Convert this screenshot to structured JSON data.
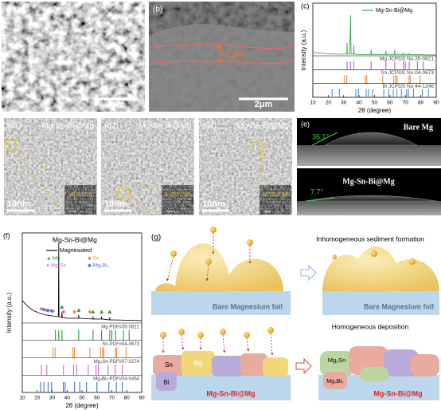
{
  "panels": {
    "a": {
      "label": "(a)",
      "scale_bar": "1μm"
    },
    "b": {
      "label": "(b)",
      "scale_bar": "2μm",
      "thickness": "1μm"
    },
    "d1": {
      "label": "(d1)",
      "title": "Mg-Sn-Bi@Mg",
      "scale_bar": "10nm",
      "inset_text": "Mg₃Bi₂ (110)",
      "inset_scale": "2nm"
    },
    "d2": {
      "label": "(d2)",
      "title": "Mg-Sn-Bi@Mg",
      "scale_bar": "10nm",
      "inset_text": "Sn(200) 2.92Å",
      "inset_scale": "2nm"
    },
    "d3": {
      "label": "(d3)",
      "title": "Mg-Sn-Bi@Mg",
      "scale_bar": "10nm",
      "inset_text": "Sn(101) 2.79Å",
      "inset_scale": "2nm"
    },
    "e": {
      "label": "(e)",
      "top": {
        "title": "Bare Mg",
        "angle": "36.1°"
      },
      "bottom": {
        "title": "Mg-Sn-Bi@Mg",
        "angle": "7.7°"
      }
    },
    "g": {
      "label": "(g)",
      "top_title": "Inhomogeneous sediment formation",
      "bottom_title": "Homogeneous deposition",
      "foil_left": "Bare Magnesium foil",
      "foil_right": "Bare Magnesium foil",
      "product_left": "Mg-Sn-Bi@Mg",
      "product_right": "Mg-Sn-Bi@Mg",
      "blocks": [
        "Sn",
        "Mg",
        "Bi",
        "Mg₂Sn",
        "Mg₃Bi₂"
      ]
    }
  },
  "chart_data": [
    {
      "type": "xrd",
      "label": "(c)",
      "xlabel": "2θ (degree)",
      "ylabel": "Intensity (a.u.)",
      "xlim": [
        10,
        90
      ],
      "xticks": [
        10,
        20,
        30,
        40,
        50,
        60,
        70,
        80,
        90
      ],
      "ylim": [
        0,
        100
      ],
      "x": [
        10,
        20,
        25,
        30,
        32,
        32.2,
        32.4,
        34,
        34.4,
        34.8,
        36.4,
        36.6,
        36.8,
        40,
        47.6,
        47.8,
        48,
        57.2,
        57.4,
        57.6,
        62.9,
        63.1,
        63.3,
        68.4,
        68.6,
        68.8,
        72.3,
        72.5,
        72.7,
        90
      ],
      "series": [
        {
          "name": "Mg-Sn-Bi@Mg",
          "color": "#3aa84a",
          "values": [
            8,
            5,
            4,
            4,
            4,
            30,
            4,
            4,
            95,
            4,
            4,
            25,
            4,
            3,
            3,
            15,
            3,
            3,
            12,
            3,
            3,
            14,
            3,
            3,
            8,
            3,
            3,
            6,
            3,
            2
          ]
        }
      ],
      "references": [
        {
          "name": "Mg JCPDS No.35-0821",
          "color": "#9b6fc0",
          "peaks": [
            32.2,
            34.4,
            36.6,
            47.8,
            57.4,
            63.1,
            68.6,
            70.0,
            72.5,
            77.8,
            81.6
          ]
        },
        {
          "name": "Sn JCPDS No.04-0673",
          "color": "#e8903a",
          "peaks": [
            30.6,
            32.0,
            43.9,
            44.9,
            55.3,
            62.5,
            63.8,
            64.6,
            72.4,
            73.2,
            79.5
          ]
        },
        {
          "name": "Bi JCPDS No.44-1246",
          "color": "#4a90d0",
          "peaks": [
            22.5,
            27.2,
            37.9,
            39.6,
            44.6,
            46.0,
            48.7,
            56.0,
            59.3,
            62.2,
            64.5,
            67.4,
            70.8,
            72.0,
            75.3,
            81.0,
            85.0
          ]
        }
      ]
    },
    {
      "type": "xrd",
      "label": "(f)",
      "title": "Mg-Sn-Bi@Mg",
      "xlabel": "2θ (degree)",
      "ylabel": "Intensity (a.u.)",
      "xlim": [
        10,
        90
      ],
      "xticks": [
        10,
        20,
        30,
        40,
        50,
        60,
        70,
        80,
        90
      ],
      "ylim": [
        0,
        100
      ],
      "x": [
        10,
        14,
        18,
        22,
        26,
        30,
        33,
        34.2,
        34.4,
        34.6,
        36.4,
        36.6,
        36.8,
        40,
        47.6,
        47.8,
        48,
        57.2,
        57.4,
        57.6,
        62.9,
        63.1,
        63.3,
        68.4,
        68.6,
        68.8,
        90
      ],
      "series": [
        {
          "name": "Magnesiated",
          "color": "#111111",
          "values": [
            28,
            20,
            15,
            12,
            10,
            9,
            8,
            8,
            100,
            8,
            7,
            14,
            7,
            6,
            6,
            10,
            6,
            5,
            8,
            5,
            5,
            8,
            5,
            4,
            7,
            4,
            3
          ]
        }
      ],
      "markers": [
        {
          "label": "▲:Mg",
          "color": "#2a9a3a",
          "shape": "triangle",
          "x": [
            36.6,
            47.8,
            57.4,
            63.1,
            68.6
          ]
        },
        {
          "label": "◆:Sn",
          "color": "#e8903a",
          "shape": "diamond",
          "x": [
            30.6,
            44.9,
            55.3
          ]
        },
        {
          "label": "●:Mg₂Sn",
          "color": "#e070c0",
          "shape": "circle",
          "x": [
            22.8,
            26.4,
            37.6
          ]
        },
        {
          "label": "◆:Mg₃Bi₂",
          "color": "#5a70d0",
          "shape": "diamond",
          "x": [
            24.5,
            27.3,
            29.6
          ]
        }
      ],
      "references": [
        {
          "name": "Mg-PDF#35-0821",
          "color": "#2a9a3a",
          "peaks": [
            32.2,
            34.4,
            36.6,
            47.8,
            57.4,
            63.1,
            68.6,
            70.0,
            72.5,
            77.8,
            81.6
          ]
        },
        {
          "name": "Sn-PDF#04-0673",
          "color": "#e8903a",
          "peaks": [
            30.6,
            32.0,
            43.9,
            44.9,
            55.3,
            62.5,
            63.8,
            64.6,
            72.4,
            73.2,
            79.5
          ]
        },
        {
          "name": "Mg₂Sn-PDF#07-0274",
          "color": "#c070d0",
          "peaks": [
            22.8,
            26.4,
            37.6,
            44.4,
            46.5,
            54.2,
            59.4,
            61.0,
            67.5,
            72.2,
            77.0
          ]
        },
        {
          "name": "Mg₃Bi₂-PDF#04-0464",
          "color": "#4a70d0",
          "peaks": [
            22.3,
            24.5,
            27.3,
            29.6,
            37.5,
            38.7,
            45.0,
            48.5,
            53.0,
            60.0,
            68.0,
            73.0,
            77.0
          ]
        }
      ]
    }
  ]
}
